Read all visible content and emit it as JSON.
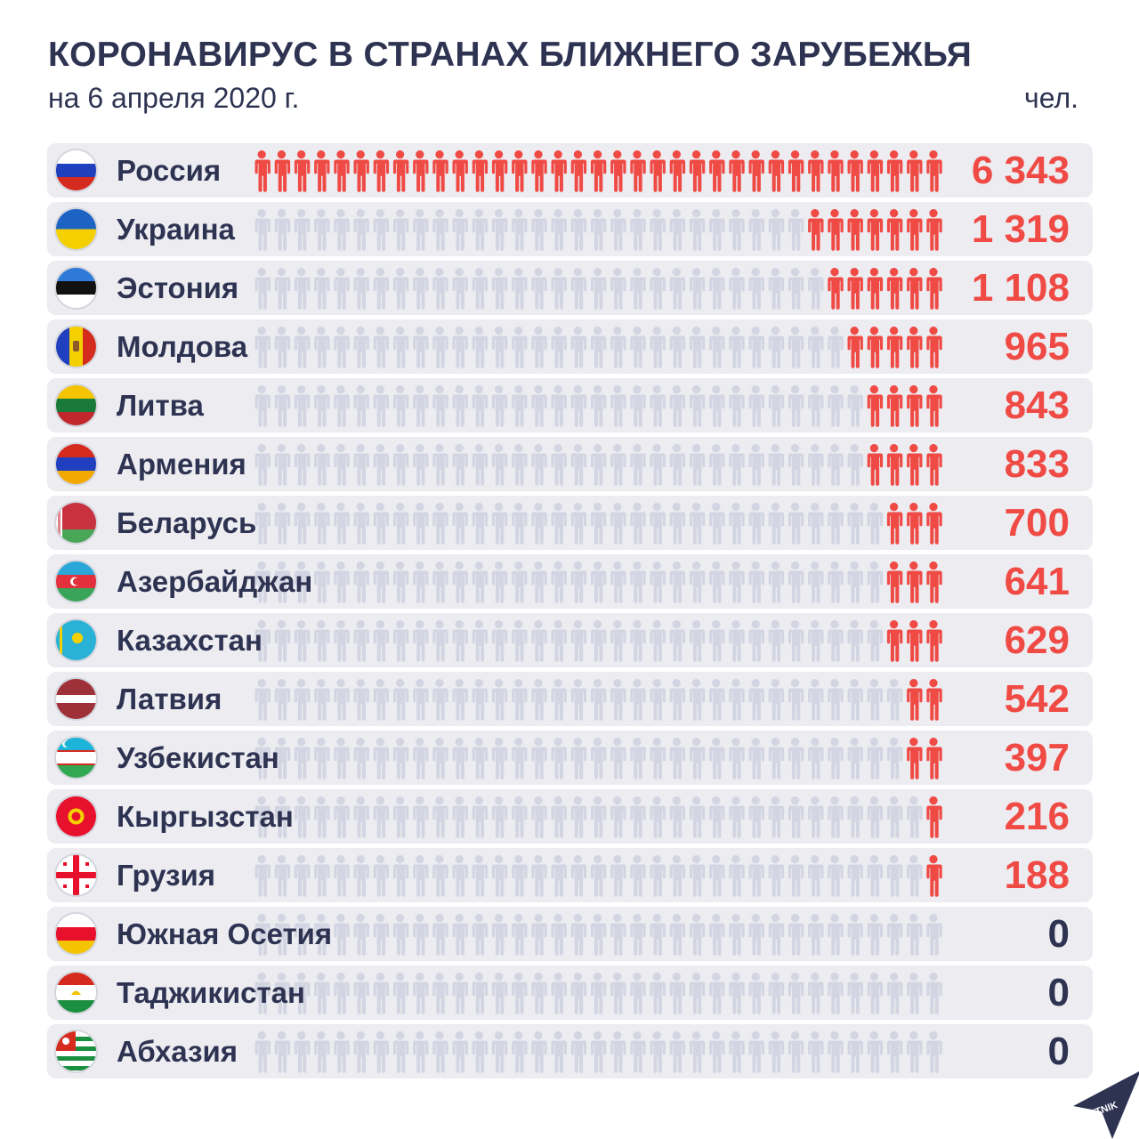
{
  "title": "КОРОНАВИРУС В СТРАНАХ БЛИЖНЕГО ЗАРУБЕЖЬЯ",
  "subtitle": "на 6 апреля 2020 г.",
  "unit": "чел.",
  "logo_text": "SPUTNIK",
  "colors": {
    "highlight": "#f04a45",
    "inactive": "#d3d6e2",
    "text": "#2e3352",
    "row_bg": "#ececf1"
  },
  "chart_data": {
    "type": "bar",
    "title": "КОРОНАВИРУС В СТРАНАХ БЛИЖНЕГО ЗАРУБЕЖЬЯ",
    "subtitle": "на 6 апреля 2020 г.",
    "unit": "чел.",
    "categories": [
      "Россия",
      "Украина",
      "Эстония",
      "Молдова",
      "Литва",
      "Армения",
      "Беларусь",
      "Азербайджан",
      "Казахстан",
      "Латвия",
      "Узбекистан",
      "Кыргызстан",
      "Грузия",
      "Южная Осетия",
      "Таджикистан",
      "Абхазия"
    ],
    "values": [
      6343,
      1319,
      1108,
      965,
      843,
      833,
      700,
      641,
      629,
      542,
      397,
      216,
      188,
      0,
      0,
      0
    ],
    "value_labels": [
      "6 343",
      "1 319",
      "1 108",
      "965",
      "843",
      "833",
      "700",
      "641",
      "629",
      "542",
      "397",
      "216",
      "188",
      "0",
      "0",
      "0"
    ],
    "flag_icons": [
      "russia-flag-icon",
      "ukraine-flag-icon",
      "estonia-flag-icon",
      "moldova-flag-icon",
      "lithuania-flag-icon",
      "armenia-flag-icon",
      "belarus-flag-icon",
      "azerbaijan-flag-icon",
      "kazakhstan-flag-icon",
      "latvia-flag-icon",
      "uzbekistan-flag-icon",
      "kyrgyzstan-flag-icon",
      "georgia-flag-icon",
      "south-ossetia-flag-icon",
      "tajikistan-flag-icon",
      "abkhazia-flag-icon"
    ]
  }
}
